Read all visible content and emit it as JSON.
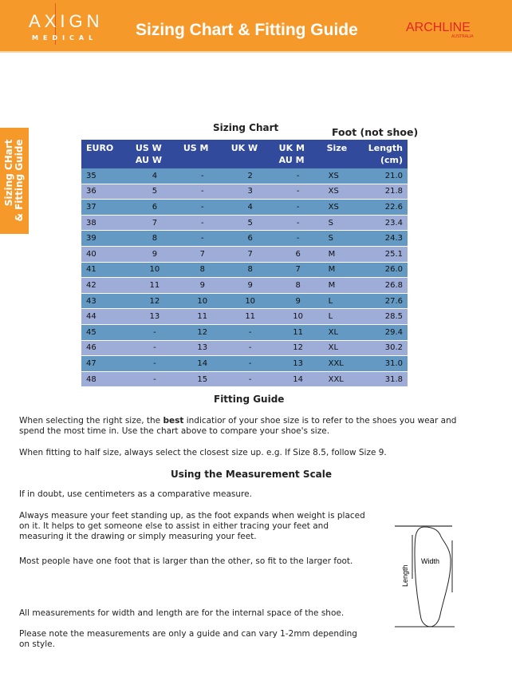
{
  "header": {
    "logo_left": "AXIGN",
    "logo_left_sub": "MEDICAL",
    "title": "Sizing Chart & Fitting Guide",
    "logo_right": "ARCHLINE",
    "logo_right_sub": "AUSTRALIA",
    "color": "#f6992b"
  },
  "side_tab": {
    "line1": "Sizing CHart",
    "line2": "& Fitting Guide"
  },
  "chart": {
    "title": "Sizing Chart",
    "note": "Foot (not shoe)",
    "columns": [
      "EURO",
      "US W\nAU W",
      "US M",
      "UK W",
      "UK M\nAU M",
      "Size",
      "Length\n(cm)"
    ],
    "rows": [
      [
        "35",
        "4",
        "-",
        "2",
        "-",
        "XS",
        "21.0"
      ],
      [
        "36",
        "5",
        "-",
        "3",
        "-",
        "XS",
        "21.8"
      ],
      [
        "37",
        "6",
        "-",
        "4",
        "-",
        "XS",
        "22.6"
      ],
      [
        "38",
        "7",
        "-",
        "5",
        "-",
        "S",
        "23.4"
      ],
      [
        "39",
        "8",
        "-",
        "6",
        "-",
        "S",
        "24.3"
      ],
      [
        "40",
        "9",
        "7",
        "7",
        "6",
        "M",
        "25.1"
      ],
      [
        "41",
        "10",
        "8",
        "8",
        "7",
        "M",
        "26.0"
      ],
      [
        "42",
        "11",
        "9",
        "9",
        "8",
        "M",
        "26.8"
      ],
      [
        "43",
        "12",
        "10",
        "10",
        "9",
        "L",
        "27.6"
      ],
      [
        "44",
        "13",
        "11",
        "11",
        "10",
        "L",
        "28.5"
      ],
      [
        "45",
        "-",
        "12",
        "-",
        "11",
        "XL",
        "29.4"
      ],
      [
        "46",
        "-",
        "13",
        "-",
        "12",
        "XL",
        "30.2"
      ],
      [
        "47",
        "-",
        "14",
        "-",
        "13",
        "XXL",
        "31.0"
      ],
      [
        "48",
        "-",
        "15",
        "-",
        "14",
        "XXL",
        "31.8"
      ]
    ]
  },
  "fitting": {
    "title": "Fitting Guide",
    "p1a": "When selecting the right size, the ",
    "p1b": "best",
    "p1c": " indicatior of your shoe size is to refer to the shoes you wear and spend the most time in. Use the chart above to compare your shoe's size.",
    "p2": "When fitting to half size, always select the closest size up. e.g. If Size 8.5, follow Size 9."
  },
  "measure": {
    "title": "Using the Measurement Scale",
    "p1": "If in doubt, use centimeters as a comparative measure.",
    "p2": "Always measure your feet standing up, as the foot expands when weight is placed on it. It helps to get someone else to assist in either tracing your feet and measuring it the drawing or simply measuring your feet.",
    "p3": "Most people have one foot that is larger than the other, so fit to the larger foot.",
    "p4": "All measurements for width and length are for the internal space of the shoe.",
    "p5": "Please note the measurements are only a guide and can vary 1-2mm depending on style.",
    "diagram_length": "Length",
    "diagram_width": "Width"
  }
}
